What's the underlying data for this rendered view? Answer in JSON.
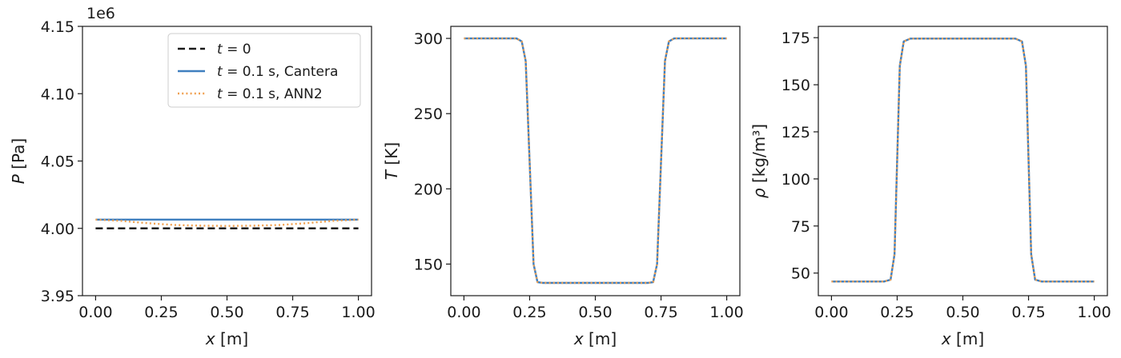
{
  "colors": {
    "initial": "#1a1a1a",
    "cantera": "#3f7fbf",
    "ann2": "#f0a050",
    "axes": "#1a1a1a",
    "background": "#ffffff"
  },
  "chart_data": [
    {
      "type": "line",
      "id": "pressure",
      "xlabel": "x [m]",
      "ylabel": "P [Pa]",
      "y_offset_text": "1e6",
      "xlim": [
        -0.05,
        1.05
      ],
      "ylim": [
        3950000,
        4150000
      ],
      "xticks": [
        0.0,
        0.25,
        0.5,
        0.75,
        1.0
      ],
      "xtick_labels": [
        "0.00",
        "0.25",
        "0.50",
        "0.75",
        "1.00"
      ],
      "yticks": [
        3950000,
        4000000,
        4050000,
        4100000,
        4150000
      ],
      "ytick_labels": [
        "3.95",
        "4.00",
        "4.05",
        "4.10",
        "4.15"
      ],
      "legend": {
        "placement": "upper-right",
        "entries": [
          {
            "label": "t = 0",
            "style": "dashed",
            "color_key": "initial"
          },
          {
            "label": "t = 0.1 s, Cantera",
            "style": "solid",
            "color_key": "cantera"
          },
          {
            "label": "t = 0.1 s, ANN2",
            "style": "dotted",
            "color_key": "ann2"
          }
        ]
      },
      "series": [
        {
          "name": "t = 0",
          "style": "dashed",
          "color_key": "initial",
          "x": [
            0.0,
            1.0
          ],
          "y": [
            4000000,
            4000000
          ]
        },
        {
          "name": "t = 0.1 s, Cantera",
          "style": "solid",
          "color_key": "cantera",
          "x": [
            0.0,
            1.0
          ],
          "y": [
            4006500,
            4006500
          ]
        },
        {
          "name": "t = 0.1 s, ANN2",
          "style": "dotted",
          "color_key": "ann2",
          "x": [
            0.0,
            0.1,
            0.2,
            0.3,
            0.4,
            0.5,
            0.6,
            0.7,
            0.8,
            0.9,
            1.0
          ],
          "y": [
            4006500,
            4005500,
            4003800,
            4002500,
            4002000,
            4001800,
            4002000,
            4002500,
            4003800,
            4005500,
            4006500
          ]
        }
      ]
    },
    {
      "type": "line",
      "id": "temperature",
      "xlabel": "x [m]",
      "ylabel": "T [K]",
      "xlim": [
        -0.05,
        1.05
      ],
      "ylim": [
        129,
        308
      ],
      "xticks": [
        0.0,
        0.25,
        0.5,
        0.75,
        1.0
      ],
      "xtick_labels": [
        "0.00",
        "0.25",
        "0.50",
        "0.75",
        "1.00"
      ],
      "yticks": [
        150,
        200,
        250,
        300
      ],
      "ytick_labels": [
        "150",
        "200",
        "250",
        "300"
      ],
      "series": [
        {
          "name": "t = 0.1 s, Cantera",
          "style": "solid",
          "color_key": "cantera",
          "x": [
            0.0,
            0.2,
            0.22,
            0.235,
            0.25,
            0.265,
            0.28,
            0.3,
            0.7,
            0.72,
            0.735,
            0.75,
            0.765,
            0.78,
            0.8,
            1.0
          ],
          "y": [
            300,
            300,
            298,
            285,
            218,
            150,
            138,
            137.5,
            137.5,
            138,
            150,
            218,
            285,
            298,
            300,
            300
          ]
        },
        {
          "name": "t = 0.1 s, ANN2",
          "style": "dotted",
          "color_key": "ann2",
          "x": [
            0.0,
            0.2,
            0.22,
            0.235,
            0.25,
            0.265,
            0.28,
            0.3,
            0.7,
            0.72,
            0.735,
            0.75,
            0.765,
            0.78,
            0.8,
            1.0
          ],
          "y": [
            300,
            300,
            298,
            285,
            218,
            150,
            138,
            137.5,
            137.5,
            138,
            150,
            218,
            285,
            298,
            300,
            300
          ]
        }
      ]
    },
    {
      "type": "line",
      "id": "density",
      "xlabel": "x [m]",
      "ylabel": "ρ [kg/m³]",
      "xlim": [
        -0.05,
        1.05
      ],
      "ylim": [
        38,
        181
      ],
      "xticks": [
        0.0,
        0.25,
        0.5,
        0.75,
        1.0
      ],
      "xtick_labels": [
        "0.00",
        "0.25",
        "0.50",
        "0.75",
        "1.00"
      ],
      "yticks": [
        50,
        75,
        100,
        125,
        150,
        175
      ],
      "ytick_labels": [
        "50",
        "75",
        "100",
        "125",
        "150",
        "175"
      ],
      "series": [
        {
          "name": "t = 0.1 s, Cantera",
          "style": "solid",
          "color_key": "cantera",
          "x": [
            0.0,
            0.2,
            0.225,
            0.24,
            0.25,
            0.26,
            0.275,
            0.3,
            0.7,
            0.725,
            0.74,
            0.75,
            0.76,
            0.775,
            0.8,
            1.0
          ],
          "y": [
            45.5,
            45.5,
            46.5,
            60,
            110,
            160,
            173,
            174.5,
            174.5,
            173,
            160,
            110,
            60,
            46.5,
            45.5,
            45.5
          ]
        },
        {
          "name": "t = 0.1 s, ANN2",
          "style": "dotted",
          "color_key": "ann2",
          "x": [
            0.0,
            0.2,
            0.225,
            0.24,
            0.25,
            0.26,
            0.275,
            0.3,
            0.7,
            0.725,
            0.74,
            0.75,
            0.76,
            0.775,
            0.8,
            1.0
          ],
          "y": [
            45.5,
            45.5,
            46.5,
            60,
            110,
            160,
            173,
            174.5,
            174.5,
            173,
            160,
            110,
            60,
            46.5,
            45.5,
            45.5
          ]
        }
      ]
    }
  ]
}
